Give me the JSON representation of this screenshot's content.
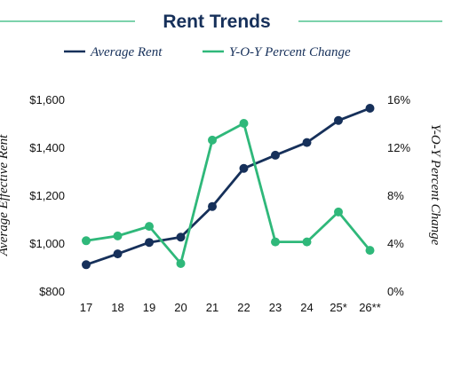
{
  "chart_data": {
    "type": "line",
    "title": "Rent Trends",
    "categories": [
      "17",
      "18",
      "19",
      "20",
      "21",
      "22",
      "23",
      "24",
      "25*",
      "26**"
    ],
    "series": [
      {
        "name": "Average Rent",
        "axis": "left",
        "color": "#16305a",
        "values": [
          910,
          955,
          1003,
          1025,
          1153,
          1312,
          1367,
          1420,
          1512,
          1563
        ]
      },
      {
        "name": "Y-O-Y Percent Change",
        "axis": "right",
        "color": "#2fb87a",
        "values": [
          4.2,
          4.6,
          5.4,
          2.3,
          12.6,
          14.0,
          4.1,
          4.1,
          6.6,
          3.4
        ]
      }
    ],
    "ylabel": "Average Effective Rent",
    "y2label": "Y-O-Y Percent Change",
    "ylim": [
      800,
      1600
    ],
    "yticks": [
      "$800",
      "$1,000",
      "$1,200",
      "$1,400",
      "$1,600"
    ],
    "y2lim": [
      0,
      16
    ],
    "y2ticks": [
      "0%",
      "4%",
      "8%",
      "12%",
      "16%"
    ],
    "grid": false,
    "legend_position": "top"
  }
}
